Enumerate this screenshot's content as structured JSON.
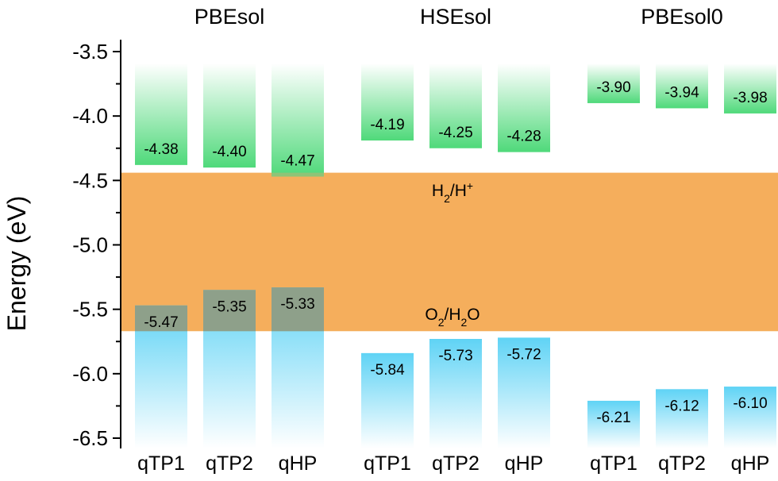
{
  "chart_data": {
    "type": "bar",
    "ylabel": "Energy (eV)",
    "ylim": [
      -6.5,
      -3.5
    ],
    "yticks": [
      "-3.5",
      "-4.0",
      "-4.5",
      "-5.0",
      "-5.5",
      "-6.0",
      "-6.5"
    ],
    "ytick_values": [
      -3.5,
      -4.0,
      -4.5,
      -5.0,
      -5.5,
      -6.0,
      -6.5
    ],
    "groups": [
      {
        "title": "PBEsol",
        "categories": [
          "qTP1",
          "qTP2",
          "qHP"
        ],
        "cbm": [
          -4.38,
          -4.4,
          -4.47
        ],
        "vbm": [
          -5.47,
          -5.35,
          -5.33
        ],
        "cbm_labels": [
          "-4.38",
          "-4.40",
          "-4.47"
        ],
        "vbm_labels": [
          "-5.47",
          "-5.35",
          "-5.33"
        ]
      },
      {
        "title": "HSEsol",
        "categories": [
          "qTP1",
          "qTP2",
          "qHP"
        ],
        "cbm": [
          -4.19,
          -4.25,
          -4.28
        ],
        "vbm": [
          -5.84,
          -5.73,
          -5.72
        ],
        "cbm_labels": [
          "-4.19",
          "-4.25",
          "-4.28"
        ],
        "vbm_labels": [
          "-5.84",
          "-5.73",
          "-5.72"
        ]
      },
      {
        "title": "PBEsol0",
        "categories": [
          "qTP1",
          "qTP2",
          "qHP"
        ],
        "cbm": [
          -3.9,
          -3.94,
          -3.98
        ],
        "vbm": [
          -6.21,
          -6.12,
          -6.1
        ],
        "cbm_labels": [
          "-3.90",
          "-3.94",
          "-3.98"
        ],
        "vbm_labels": [
          "-6.21",
          "-6.12",
          "-6.10"
        ]
      }
    ],
    "redox_band": {
      "top": -4.44,
      "bottom": -5.67,
      "upper_label": "H2/H+",
      "lower_label": "O2/H2O"
    },
    "colors": {
      "conduction": "#4fd97a",
      "valence": "#5fd3f5",
      "redox_band": "#f5ae5c",
      "overlap_valence": "#8ea08a"
    }
  }
}
